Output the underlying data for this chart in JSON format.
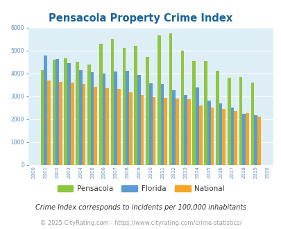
{
  "title": "Pensacola Property Crime Index",
  "years": [
    2000,
    2001,
    2002,
    2003,
    2004,
    2005,
    2006,
    2007,
    2008,
    2009,
    2010,
    2011,
    2012,
    2013,
    2014,
    2015,
    2016,
    2017,
    2018,
    2019,
    2020
  ],
  "pensacola": [
    0,
    4150,
    4600,
    4650,
    4500,
    4380,
    5300,
    5500,
    5100,
    5200,
    4720,
    5650,
    5750,
    5000,
    4520,
    4530,
    4100,
    3820,
    3840,
    3600,
    0
  ],
  "florida": [
    0,
    4780,
    4620,
    4440,
    4150,
    4050,
    4000,
    4080,
    4110,
    3920,
    3560,
    3530,
    3270,
    3060,
    3380,
    2820,
    2680,
    2490,
    2240,
    2170,
    0
  ],
  "national": [
    0,
    3680,
    3630,
    3600,
    3540,
    3400,
    3360,
    3310,
    3180,
    3040,
    2960,
    2940,
    2900,
    2870,
    2600,
    2490,
    2450,
    2360,
    2250,
    2110,
    0
  ],
  "colors": {
    "pensacola": "#8dc63f",
    "florida": "#5b9bd5",
    "national": "#f5a623"
  },
  "bar_width": 0.28,
  "ylim": [
    0,
    6000
  ],
  "yticks": [
    0,
    1000,
    2000,
    3000,
    4000,
    5000,
    6000
  ],
  "plot_bg": "#deeef6",
  "title_color": "#1a6496",
  "title_fontsize": 10.5,
  "tick_color": "#5b8db8",
  "subtitle": "Crime Index corresponds to incidents per 100,000 inhabitants",
  "subtitle_color": "#333333",
  "subtitle_fontsize": 7.0,
  "footer": "© 2025 CityRating.com - https://www.cityrating.com/crime-statistics/",
  "footer_color": "#999999",
  "footer_fontsize": 6.0,
  "legend_labels": [
    "Pensacola",
    "Florida",
    "National"
  ]
}
